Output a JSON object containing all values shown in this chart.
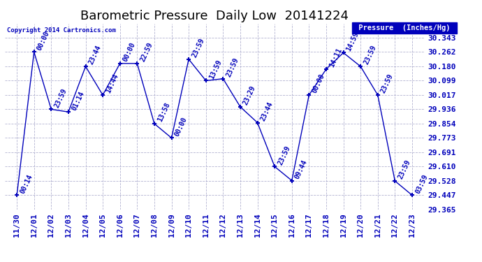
{
  "title": "Barometric Pressure  Daily Low  20141224",
  "ylabel": "Pressure  (Inches/Hg)",
  "copyright": "Copyright 2014 Cartronics.com",
  "background_color": "#ffffff",
  "plot_bg_color": "#ffffff",
  "grid_color": "#aaaacc",
  "line_color": "#0000bb",
  "text_color": "#0000bb",
  "legend_bg": "#0000bb",
  "legend_text": "#ffffff",
  "ylim_min": 29.365,
  "ylim_max": 30.424,
  "yticks": [
    30.343,
    30.262,
    30.18,
    30.099,
    30.017,
    29.936,
    29.854,
    29.773,
    29.691,
    29.61,
    29.528,
    29.447,
    29.365
  ],
  "dates": [
    "11/30",
    "12/01",
    "12/02",
    "12/03",
    "12/04",
    "12/05",
    "12/06",
    "12/07",
    "12/08",
    "12/09",
    "12/10",
    "12/11",
    "12/12",
    "12/13",
    "12/14",
    "12/15",
    "12/16",
    "12/17",
    "12/18",
    "12/19",
    "12/20",
    "12/21",
    "12/22",
    "12/23"
  ],
  "x_values": [
    0,
    1,
    2,
    3,
    4,
    5,
    6,
    7,
    8,
    9,
    10,
    11,
    12,
    13,
    14,
    15,
    16,
    17,
    18,
    19,
    20,
    21,
    22,
    23
  ],
  "y_values": [
    29.447,
    30.262,
    29.936,
    29.921,
    30.18,
    30.017,
    30.197,
    30.197,
    29.854,
    29.773,
    30.221,
    30.099,
    30.11,
    29.95,
    29.86,
    29.61,
    29.53,
    30.017,
    30.165,
    30.258,
    30.18,
    30.017,
    29.528,
    29.447
  ],
  "labels": [
    "00:14",
    "00:00",
    "23:59",
    "01:14",
    "23:44",
    "14:44",
    "00:00",
    "22:59",
    "13:58",
    "00:00",
    "23:59",
    "13:59",
    "23:59",
    "23:29",
    "23:44",
    "23:59",
    "09:44",
    "00:00",
    "14:11",
    "14:59",
    "23:59",
    "23:59",
    "23:59",
    "03:59"
  ],
  "fontsize_title": 13,
  "fontsize_axis": 8,
  "fontsize_label": 7,
  "marker_size": 5
}
